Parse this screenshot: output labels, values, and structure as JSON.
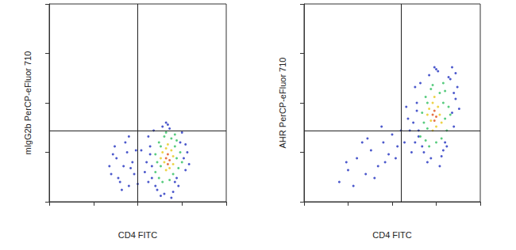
{
  "chart_data": [
    {
      "type": "scatter",
      "x_label": "CD4 FITC",
      "y_label": "mIgG2b PerCP-eFluor 710",
      "xlim": [
        0,
        100
      ],
      "ylim": [
        0,
        100
      ],
      "xticks": [
        0,
        25,
        50,
        75,
        100
      ],
      "yticks": [
        0,
        25,
        50,
        75,
        100
      ],
      "grid": false,
      "tick_labels": false,
      "gate": [
        50,
        36
      ],
      "series": [
        {
          "color": "#1f2fbf",
          "marker": "circle",
          "x": [
            55,
            57,
            58,
            76,
            78,
            77,
            56,
            59,
            74,
            73,
            61,
            65,
            70,
            68,
            54,
            57,
            60,
            72,
            75,
            67,
            63,
            58,
            77,
            79,
            52,
            66,
            69,
            64,
            71,
            56,
            35,
            38,
            40,
            42,
            44,
            45,
            47,
            48,
            37,
            41,
            43,
            46,
            39,
            36,
            49,
            50,
            34,
            45
          ],
          "values": [
            20,
            28,
            12,
            22,
            25,
            16,
            33,
            36,
            30,
            8,
            6,
            4,
            5,
            37,
            15,
            24,
            8,
            12,
            35,
            39,
            3,
            18,
            29,
            19,
            26,
            40,
            2,
            38,
            10,
            10,
            14,
            22,
            10,
            18,
            25,
            8,
            20,
            14,
            28,
            6,
            30,
            17,
            12,
            24,
            26,
            9,
            18,
            33
          ]
        },
        {
          "color": "#2fbf5f",
          "marker": "circle",
          "x": [
            60,
            62,
            63,
            71,
            72,
            74,
            73,
            61,
            65,
            69,
            70,
            62,
            64,
            68,
            66,
            72,
            60,
            75,
            71,
            63
          ],
          "values": [
            24,
            30,
            18,
            28,
            22,
            25,
            17,
            20,
            33,
            32,
            14,
            12,
            10,
            11,
            35,
            31,
            15,
            20,
            34,
            28
          ]
        },
        {
          "color": "#e8c81c",
          "marker": "circle",
          "x": [
            64,
            66,
            69,
            70,
            65,
            68,
            66,
            70,
            63,
            67
          ],
          "values": [
            25,
            27,
            26,
            23,
            20,
            17,
            16,
            19,
            22,
            29
          ]
        },
        {
          "color": "#e0501c",
          "marker": "circle",
          "x": [
            66,
            67,
            68,
            67
          ],
          "values": [
            22,
            24,
            21,
            19
          ]
        }
      ]
    },
    {
      "type": "scatter",
      "x_label": "CD4 FITC",
      "y_label": "AHR PerCP-eFluor 710",
      "xlim": [
        0,
        100
      ],
      "ylim": [
        0,
        100
      ],
      "xticks": [
        0,
        25,
        50,
        75,
        100
      ],
      "yticks": [
        0,
        25,
        50,
        75,
        100
      ],
      "grid": false,
      "tick_labels": false,
      "gate": [
        55,
        36
      ],
      "series": [
        {
          "color": "#1f2fbf",
          "marker": "circle",
          "x": [
            62,
            64,
            65,
            84,
            86,
            85,
            63,
            66,
            82,
            81,
            68,
            72,
            78,
            76,
            60,
            64,
            67,
            80,
            83,
            75,
            70,
            65,
            85,
            88,
            59,
            74,
            77,
            71,
            79,
            63,
            87,
            86,
            84,
            61,
            58,
            20,
            25,
            30,
            35,
            38,
            42,
            45,
            48,
            50,
            53,
            55,
            28,
            33,
            40,
            46,
            52,
            36,
            44,
            24,
            57
          ],
          "values": [
            40,
            50,
            33,
            45,
            52,
            38,
            58,
            60,
            63,
            28,
            25,
            22,
            23,
            66,
            36,
            46,
            28,
            30,
            62,
            67,
            20,
            36,
            55,
            47,
            42,
            68,
            18,
            64,
            26,
            30,
            58,
            65,
            68,
            25,
            48,
            10,
            16,
            22,
            14,
            26,
            18,
            30,
            24,
            34,
            28,
            36,
            8,
            30,
            12,
            20,
            22,
            32,
            38,
            20,
            30
          ]
        },
        {
          "color": "#2fbf5f",
          "marker": "circle",
          "x": [
            67,
            69,
            70,
            79,
            80,
            82,
            81,
            68,
            72,
            77,
            78,
            69,
            71,
            75,
            73,
            80,
            66,
            83,
            79,
            70
          ],
          "values": [
            45,
            53,
            37,
            50,
            42,
            48,
            36,
            40,
            57,
            55,
            32,
            31,
            28,
            30,
            59,
            56,
            33,
            44,
            60,
            50
          ]
        },
        {
          "color": "#e8c81c",
          "marker": "circle",
          "x": [
            71,
            73,
            76,
            77,
            72,
            75,
            73,
            78,
            70,
            74
          ],
          "values": [
            47,
            50,
            48,
            44,
            41,
            38,
            36,
            40,
            44,
            53
          ]
        },
        {
          "color": "#e0501c",
          "marker": "circle",
          "x": [
            73,
            74,
            75,
            74
          ],
          "values": [
            44,
            46,
            43,
            41
          ]
        }
      ]
    }
  ]
}
